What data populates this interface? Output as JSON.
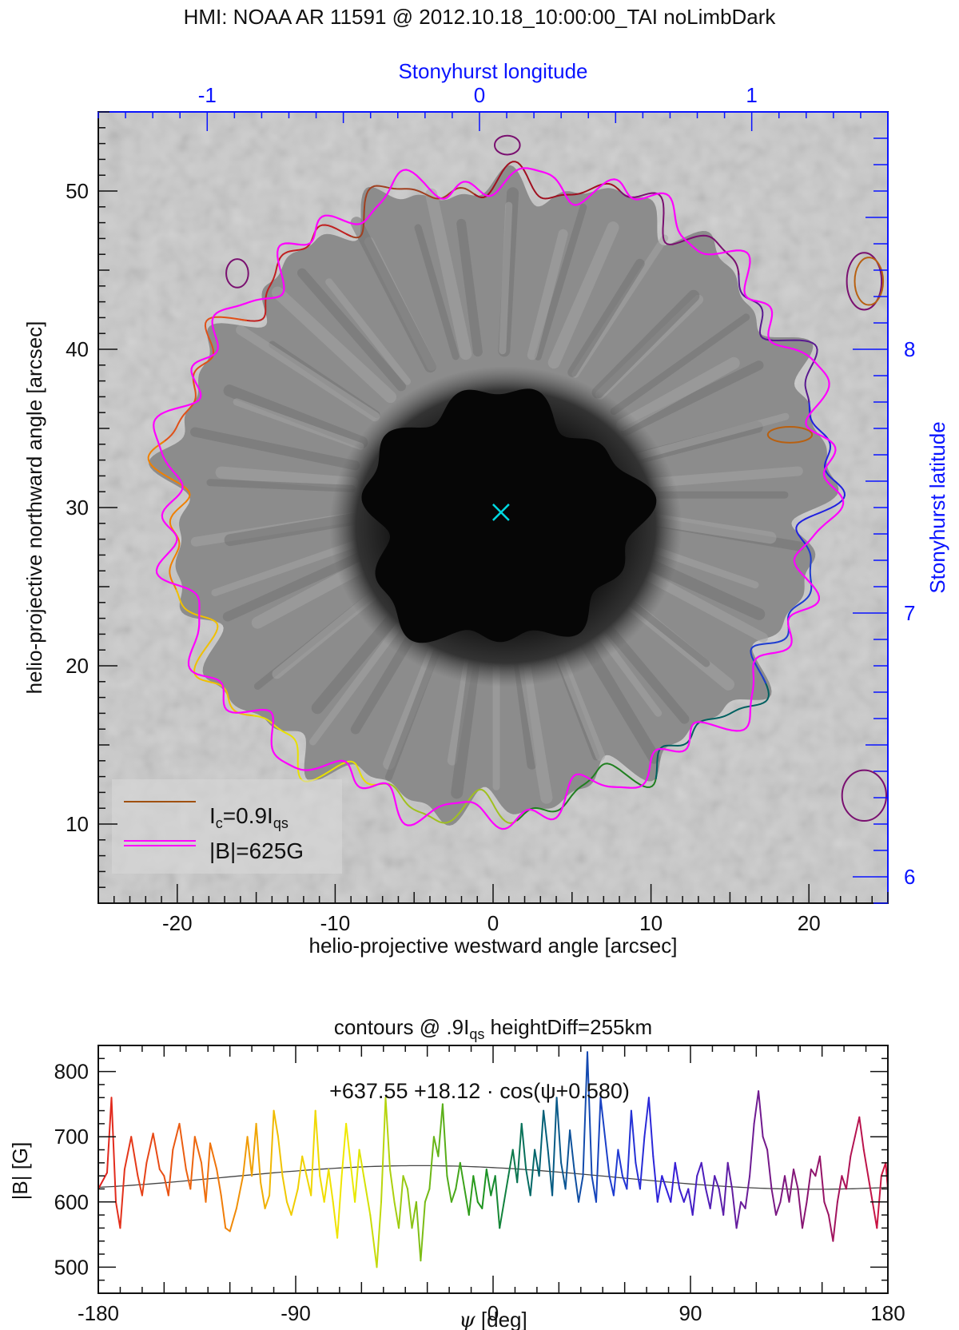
{
  "chart_data": [
    {
      "type": "image-contour",
      "title": "HMI: NOAA AR 11591 @ 2012.10.18_10:00:00_TAI noLimbDark",
      "xlabel": "helio-projective westward angle [arcsec]",
      "ylabel": "helio-projective northward angle [arcsec]",
      "top_axis_label": "Stonyhurst longitude",
      "right_axis_label": "Stonyhurst latitude",
      "xlim": [
        -25,
        25
      ],
      "ylim": [
        5,
        55
      ],
      "top_lim": [
        -1.4,
        1.5
      ],
      "right_lim": [
        5.9,
        8.9
      ],
      "x_ticks": [
        "-20",
        "-10",
        "0",
        "10",
        "20"
      ],
      "x_tick_values": [
        -20,
        -10,
        0,
        10,
        20
      ],
      "y_ticks": [
        "10",
        "20",
        "30",
        "40",
        "50"
      ],
      "y_tick_values": [
        10,
        20,
        30,
        40,
        50
      ],
      "top_ticks": [
        "-1",
        "0",
        "1"
      ],
      "top_tick_values": [
        -1,
        0,
        1
      ],
      "right_ticks": [
        "6",
        "7",
        "8"
      ],
      "right_tick_values": [
        6,
        7,
        8
      ],
      "center_marker": {
        "x": 0.5,
        "y": 29.7,
        "color": "#00d8e0"
      },
      "legend": {
        "location": "bottom-left",
        "entries": [
          {
            "label": "I",
            "sub1": "c",
            "mid": "=0.9I",
            "sub2": "qs",
            "style": "rainbow"
          },
          {
            "label": "|B|=625G",
            "color": "#ff00ff"
          }
        ]
      },
      "contours": {
        "intensity_label": "I_c=0.9I_qs",
        "field_label": "|B|=625G",
        "center": [
          0.2,
          30.8
        ],
        "radius_arcsec": 20.3,
        "field_color": "#ff00ff"
      },
      "blobs": [
        {
          "x": 0.9,
          "y": 52.9,
          "rx": 0.4,
          "ry": 0.3,
          "color": "#7a1070"
        },
        {
          "x": -16.2,
          "y": 44.8,
          "rx": 0.35,
          "ry": 0.45,
          "color": "#7a1070"
        },
        {
          "x": 23.5,
          "y": 44.3,
          "rx": 0.55,
          "ry": 0.9,
          "color": "#7a1070"
        },
        {
          "x": 23.8,
          "y": 44.3,
          "rx": 0.45,
          "ry": 0.75,
          "color": "#b86010"
        },
        {
          "x": 18.8,
          "y": 34.6,
          "rx": 0.7,
          "ry": 0.25,
          "color": "#b86010"
        },
        {
          "x": 23.5,
          "y": 11.8,
          "rx": 0.7,
          "ry": 0.8,
          "color": "#7a1070"
        }
      ]
    },
    {
      "type": "line",
      "title": "contours @ .9I",
      "title_sub": "qs",
      "title_rest": " heightDiff=255km",
      "fit_label": "+637.55   +18.12 · cos(ψ+0.580)",
      "xlabel_symbol": "ψ",
      "xlabel_unit": " [deg]",
      "ylabel": "|B|  [G]",
      "xlim": [
        -180,
        180
      ],
      "ylim": [
        460,
        840
      ],
      "x_ticks": [
        "-180",
        "-90",
        "0",
        "90",
        "180"
      ],
      "x_tick_values": [
        -180,
        -90,
        0,
        90,
        180
      ],
      "y_ticks": [
        "500",
        "600",
        "700",
        "800"
      ],
      "y_tick_values": [
        500,
        600,
        700,
        800
      ],
      "fit": {
        "offset": 637.55,
        "amplitude": 18.12,
        "phase_rad": 0.58
      },
      "series_anchor_points": [
        [
          -180,
          620
        ],
        [
          -176,
          645
        ],
        [
          -174,
          760
        ],
        [
          -172,
          600
        ],
        [
          -170,
          560
        ],
        [
          -168,
          650
        ],
        [
          -165,
          700
        ],
        [
          -162,
          640
        ],
        [
          -160,
          610
        ],
        [
          -158,
          660
        ],
        [
          -155,
          705
        ],
        [
          -152,
          650
        ],
        [
          -150,
          640
        ],
        [
          -148,
          610
        ],
        [
          -146,
          680
        ],
        [
          -143,
          720
        ],
        [
          -140,
          650
        ],
        [
          -138,
          620
        ],
        [
          -136,
          700
        ],
        [
          -133,
          660
        ],
        [
          -131,
          600
        ],
        [
          -129,
          690
        ],
        [
          -126,
          650
        ],
        [
          -124,
          610
        ],
        [
          -122,
          560
        ],
        [
          -120,
          555
        ],
        [
          -117,
          590
        ],
        [
          -114,
          640
        ],
        [
          -112,
          700
        ],
        [
          -110,
          640
        ],
        [
          -108,
          720
        ],
        [
          -106,
          630
        ],
        [
          -104,
          590
        ],
        [
          -102,
          610
        ],
        [
          -100,
          740
        ],
        [
          -98,
          700
        ],
        [
          -96,
          640
        ],
        [
          -94,
          600
        ],
        [
          -92,
          580
        ],
        [
          -89,
          620
        ],
        [
          -87,
          670
        ],
        [
          -85,
          640
        ],
        [
          -83,
          610
        ],
        [
          -81,
          740
        ],
        [
          -79,
          640
        ],
        [
          -77,
          600
        ],
        [
          -75,
          650
        ],
        [
          -73,
          600
        ],
        [
          -71,
          545
        ],
        [
          -69,
          640
        ],
        [
          -67,
          720
        ],
        [
          -65,
          660
        ],
        [
          -63,
          600
        ],
        [
          -61,
          680
        ],
        [
          -59,
          640
        ],
        [
          -56,
          580
        ],
        [
          -53,
          500
        ],
        [
          -51,
          600
        ],
        [
          -49,
          760
        ],
        [
          -47,
          650
        ],
        [
          -45,
          600
        ],
        [
          -43,
          560
        ],
        [
          -41,
          640
        ],
        [
          -39,
          620
        ],
        [
          -37,
          560
        ],
        [
          -35,
          600
        ],
        [
          -33,
          510
        ],
        [
          -31,
          600
        ],
        [
          -29,
          620
        ],
        [
          -27,
          700
        ],
        [
          -25,
          670
        ],
        [
          -23,
          750
        ],
        [
          -21,
          640
        ],
        [
          -19,
          600
        ],
        [
          -17,
          620
        ],
        [
          -15,
          660
        ],
        [
          -13,
          620
        ],
        [
          -11,
          580
        ],
        [
          -9,
          640
        ],
        [
          -7,
          600
        ],
        [
          -5,
          590
        ],
        [
          -3,
          650
        ],
        [
          -1,
          610
        ],
        [
          1,
          640
        ],
        [
          3,
          560
        ],
        [
          5,
          600
        ],
        [
          7,
          640
        ],
        [
          9,
          680
        ],
        [
          11,
          630
        ],
        [
          13,
          720
        ],
        [
          15,
          650
        ],
        [
          17,
          610
        ],
        [
          19,
          680
        ],
        [
          21,
          640
        ],
        [
          23,
          740
        ],
        [
          25,
          680
        ],
        [
          27,
          610
        ],
        [
          29,
          760
        ],
        [
          31,
          660
        ],
        [
          33,
          620
        ],
        [
          35,
          710
        ],
        [
          37,
          650
        ],
        [
          39,
          600
        ],
        [
          41,
          640
        ],
        [
          43,
          830
        ],
        [
          45,
          640
        ],
        [
          47,
          600
        ],
        [
          49,
          760
        ],
        [
          51,
          700
        ],
        [
          53,
          640
        ],
        [
          55,
          610
        ],
        [
          57,
          680
        ],
        [
          59,
          640
        ],
        [
          61,
          620
        ],
        [
          63,
          740
        ],
        [
          65,
          660
        ],
        [
          67,
          620
        ],
        [
          69,
          700
        ],
        [
          71,
          760
        ],
        [
          73,
          670
        ],
        [
          75,
          600
        ],
        [
          77,
          640
        ],
        [
          79,
          620
        ],
        [
          81,
          600
        ],
        [
          83,
          660
        ],
        [
          85,
          620
        ],
        [
          87,
          600
        ],
        [
          89,
          620
        ],
        [
          91,
          580
        ],
        [
          93,
          640
        ],
        [
          95,
          660
        ],
        [
          97,
          620
        ],
        [
          99,
          590
        ],
        [
          101,
          640
        ],
        [
          103,
          620
        ],
        [
          105,
          580
        ],
        [
          107,
          660
        ],
        [
          109,
          620
        ],
        [
          111,
          560
        ],
        [
          113,
          600
        ],
        [
          115,
          590
        ],
        [
          117,
          640
        ],
        [
          119,
          720
        ],
        [
          121,
          770
        ],
        [
          123,
          700
        ],
        [
          125,
          680
        ],
        [
          127,
          620
        ],
        [
          129,
          580
        ],
        [
          131,
          600
        ],
        [
          133,
          640
        ],
        [
          135,
          600
        ],
        [
          137,
          650
        ],
        [
          139,
          620
        ],
        [
          141,
          560
        ],
        [
          143,
          600
        ],
        [
          145,
          650
        ],
        [
          147,
          640
        ],
        [
          149,
          670
        ],
        [
          151,
          600
        ],
        [
          153,
          580
        ],
        [
          155,
          540
        ],
        [
          157,
          600
        ],
        [
          159,
          640
        ],
        [
          161,
          620
        ],
        [
          163,
          670
        ],
        [
          165,
          700
        ],
        [
          167,
          730
        ],
        [
          169,
          680
        ],
        [
          171,
          640
        ],
        [
          173,
          600
        ],
        [
          175,
          560
        ],
        [
          177,
          640
        ],
        [
          179,
          660
        ],
        [
          180,
          620
        ]
      ],
      "series_color": "rainbow"
    }
  ]
}
